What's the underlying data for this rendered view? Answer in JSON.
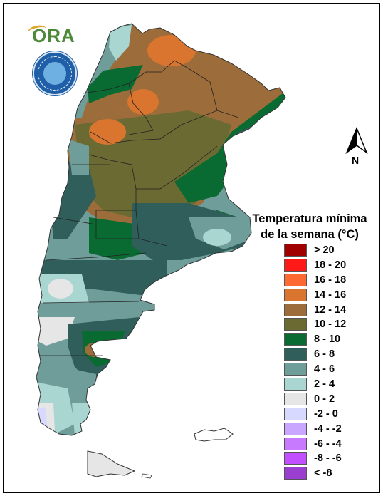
{
  "header": {
    "logo_text": "ORA",
    "seal_text": "SERVICIO METEOROLÓGICO NACIONAL ARGENTINA"
  },
  "compass": {
    "label": "N"
  },
  "legend": {
    "title_line1": "Temperatura mínima",
    "title_line2": "de la semana (°C)",
    "items": [
      {
        "label": "> 20",
        "color": "#a00000"
      },
      {
        "label": "18 - 20",
        "color": "#ff1a1a"
      },
      {
        "label": "16 - 18",
        "color": "#ff6a33"
      },
      {
        "label": "14 - 16",
        "color": "#d9752f"
      },
      {
        "label": "12 - 14",
        "color": "#9c6c3a"
      },
      {
        "label": "10 - 12",
        "color": "#6b6a33"
      },
      {
        "label": "8 - 10",
        "color": "#0a6b32"
      },
      {
        "label": "6 - 8",
        "color": "#2f5e5b"
      },
      {
        "label": "4 - 6",
        "color": "#6f9d9a"
      },
      {
        "label": "2 - 4",
        "color": "#a9d6d1"
      },
      {
        "label": "0 - 2",
        "color": "#e6e6e6"
      },
      {
        "label": "-2 - 0",
        "color": "#d7d9ff"
      },
      {
        "label": "-4 - -2",
        "color": "#c9a6ff"
      },
      {
        "label": "-6 - -4",
        "color": "#c87aff"
      },
      {
        "label": "-8 - -6",
        "color": "#c350ff"
      },
      {
        "label": "< -8",
        "color": "#9a3fd0"
      }
    ]
  }
}
